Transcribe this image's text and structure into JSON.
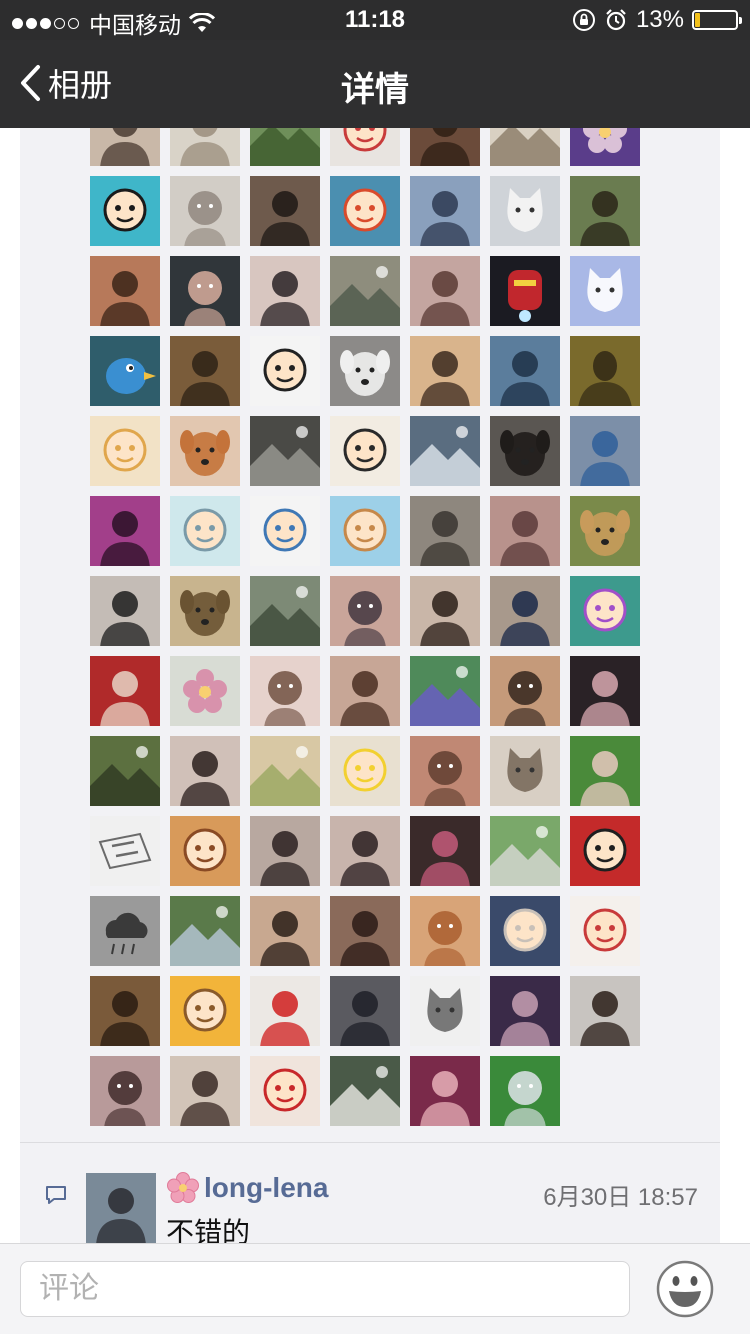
{
  "status_bar": {
    "carrier": "中国移动",
    "time": "11:18",
    "battery_text": "13%",
    "battery_level": 0.13,
    "signal_bars_total": 5,
    "signal_bars_full": 3
  },
  "nav": {
    "back_label": "相册",
    "title": "详情"
  },
  "likes": {
    "columns": 7,
    "avatars": [
      {
        "icon": "person-icon",
        "bg": "#c9b8a8",
        "fg": "#4a3b32"
      },
      {
        "icon": "person-icon",
        "bg": "#d9d3c8",
        "fg": "#9a8d7c"
      },
      {
        "icon": "landscape-icon",
        "bg": "#6f8f5a",
        "fg": "#3d5a2c"
      },
      {
        "icon": "cartoon-icon",
        "bg": "#e8e4e0",
        "fg": "#c83b3b"
      },
      {
        "icon": "person-icon",
        "bg": "#6b4b3a",
        "fg": "#2e1e14"
      },
      {
        "icon": "landscape-icon",
        "bg": "#d9d0c2",
        "fg": "#8a7a66"
      },
      {
        "icon": "flower-icon",
        "bg": "#5a3d8a",
        "fg": "#e8d0e0"
      },
      {
        "icon": "cartoon-icon",
        "bg": "#3fb6c9",
        "fg": "#1a1a1a"
      },
      {
        "icon": "baby-icon",
        "bg": "#d2cdc6",
        "fg": "#8d837a"
      },
      {
        "icon": "person-icon",
        "bg": "#6e5a4c",
        "fg": "#1f1915"
      },
      {
        "icon": "cartoon-icon",
        "bg": "#4b8fb0",
        "fg": "#d94a2b"
      },
      {
        "icon": "person-icon",
        "bg": "#8aa0bd",
        "fg": "#2d3a52"
      },
      {
        "icon": "cat-icon",
        "bg": "#cfd3d8",
        "fg": "#f5f5f5"
      },
      {
        "icon": "person-icon",
        "bg": "#6a7c50",
        "fg": "#2a2618"
      },
      {
        "icon": "person-icon",
        "bg": "#b7795a",
        "fg": "#3b2418"
      },
      {
        "icon": "baby-icon",
        "bg": "#30363a",
        "fg": "#e3b5a4"
      },
      {
        "icon": "person-icon",
        "bg": "#d8c6c0",
        "fg": "#2a2226"
      },
      {
        "icon": "landscape-icon",
        "bg": "#8e8d7d",
        "fg": "#4f5a4b"
      },
      {
        "icon": "person-icon",
        "bg": "#c4a5a0",
        "fg": "#5a3a34"
      },
      {
        "icon": "robot-icon",
        "bg": "#1b1b22",
        "fg": "#c1272d"
      },
      {
        "icon": "cat-icon",
        "bg": "#a9b8e6",
        "fg": "#ffffff"
      },
      {
        "icon": "bird-icon",
        "bg": "#2f5d6b",
        "fg": "#3a8fd1"
      },
      {
        "icon": "person-icon",
        "bg": "#7a5c3a",
        "fg": "#2e2216"
      },
      {
        "icon": "cartoon-icon",
        "bg": "#f4f4f4",
        "fg": "#222222"
      },
      {
        "icon": "dog-icon",
        "bg": "#8c8a88",
        "fg": "#efefef"
      },
      {
        "icon": "person-icon",
        "bg": "#d9b48c",
        "fg": "#3b2a1f"
      },
      {
        "icon": "person-icon",
        "bg": "#5b7d9c",
        "fg": "#1e3148"
      },
      {
        "icon": "portrait-icon",
        "bg": "#7a6a2c",
        "fg": "#3c3218"
      },
      {
        "icon": "cartoon-icon",
        "bg": "#f2e2c6",
        "fg": "#e0a64c"
      },
      {
        "icon": "dog-icon",
        "bg": "#e2c7b0",
        "fg": "#c4733a"
      },
      {
        "icon": "landscape-icon",
        "bg": "#4a4a46",
        "fg": "#9a9a94"
      },
      {
        "icon": "cartoon-icon",
        "bg": "#f2ece2",
        "fg": "#2a2a2a"
      },
      {
        "icon": "landscape-icon",
        "bg": "#5a6d80",
        "fg": "#dfe6ec"
      },
      {
        "icon": "dog-icon",
        "bg": "#5a5652",
        "fg": "#1f1c1a"
      },
      {
        "icon": "person-icon",
        "bg": "#7c8fa8",
        "fg": "#2f5f9a"
      },
      {
        "icon": "person-icon",
        "bg": "#a23f8a",
        "fg": "#2a1024"
      },
      {
        "icon": "cartoon-icon",
        "bg": "#cfe8ec",
        "fg": "#7a9aa8"
      },
      {
        "icon": "cartoon-icon",
        "bg": "#f4f4f4",
        "fg": "#3f78b5"
      },
      {
        "icon": "cartoon-icon",
        "bg": "#9dd0e8",
        "fg": "#c6884a"
      },
      {
        "icon": "person-icon",
        "bg": "#8e877e",
        "fg": "#3a3530"
      },
      {
        "icon": "person-icon",
        "bg": "#b8928c",
        "fg": "#5b3a3a"
      },
      {
        "icon": "dog-icon",
        "bg": "#7a8a4a",
        "fg": "#c89b5b"
      },
      {
        "icon": "person-icon",
        "bg": "#c4bcb6",
        "fg": "#1d1d1d"
      },
      {
        "icon": "dog-icon",
        "bg": "#c8b48e",
        "fg": "#6a5332"
      },
      {
        "icon": "landscape-icon",
        "bg": "#7d8a76",
        "fg": "#3d4a3a"
      },
      {
        "icon": "baby-icon",
        "bg": "#c9a59a",
        "fg": "#3b2f3a"
      },
      {
        "icon": "person-icon",
        "bg": "#c9b6a8",
        "fg": "#2a1e18"
      },
      {
        "icon": "person-icon",
        "bg": "#a8998c",
        "fg": "#1a2848"
      },
      {
        "icon": "cartoon-icon",
        "bg": "#3d9a8d",
        "fg": "#a14fc9"
      },
      {
        "icon": "person-icon",
        "bg": "#b02a2a",
        "fg": "#e8d4c4"
      },
      {
        "icon": "flower-icon",
        "bg": "#d8dcd4",
        "fg": "#d98aa8"
      },
      {
        "icon": "baby-icon",
        "bg": "#e6d2cc",
        "fg": "#6a4a3a"
      },
      {
        "icon": "person-icon",
        "bg": "#c7a696",
        "fg": "#4a2e22"
      },
      {
        "icon": "landscape-icon",
        "bg": "#4f8a5a",
        "fg": "#6a5ac8"
      },
      {
        "icon": "baby-icon",
        "bg": "#c59a7a",
        "fg": "#2a1e18"
      },
      {
        "icon": "person-icon",
        "bg": "#2a2226",
        "fg": "#d8a8b0"
      },
      {
        "icon": "landscape-icon",
        "bg": "#5c7040",
        "fg": "#2f3a22"
      },
      {
        "icon": "person-icon",
        "bg": "#d0c0b8",
        "fg": "#2a1e1c"
      },
      {
        "icon": "landscape-icon",
        "bg": "#d8c8a4",
        "fg": "#9aa860"
      },
      {
        "icon": "cartoon-icon",
        "bg": "#e8e0d0",
        "fg": "#f2d030"
      },
      {
        "icon": "baby-icon",
        "bg": "#c08874",
        "fg": "#5a3a2c"
      },
      {
        "icon": "cat-icon",
        "bg": "#d8cfc4",
        "fg": "#7a6a5c"
      },
      {
        "icon": "person-icon",
        "bg": "#4a8a3a",
        "fg": "#e8c8c0"
      },
      {
        "icon": "logo-icon",
        "bg": "#f0f0f0",
        "fg": "#6a6a6a"
      },
      {
        "icon": "cartoon-icon",
        "bg": "#d89a5a",
        "fg": "#8a4a24"
      },
      {
        "icon": "person-icon",
        "bg": "#b8a8a0",
        "fg": "#2a2020"
      },
      {
        "icon": "person-icon",
        "bg": "#c8b4ac",
        "fg": "#2a1e20"
      },
      {
        "icon": "person-icon",
        "bg": "#3a2a2a",
        "fg": "#c45a7a"
      },
      {
        "icon": "landscape-icon",
        "bg": "#7aa86a",
        "fg": "#d8d8d4"
      },
      {
        "icon": "cartoon-icon",
        "bg": "#c42a2a",
        "fg": "#1f1f1f"
      },
      {
        "icon": "cloud-icon",
        "bg": "#9a9a9a",
        "fg": "#3a3a3a"
      },
      {
        "icon": "landscape-icon",
        "bg": "#5a7a4a",
        "fg": "#b8c8d8"
      },
      {
        "icon": "person-icon",
        "bg": "#c8a890",
        "fg": "#2a1e18"
      },
      {
        "icon": "person-icon",
        "bg": "#8a6a5a",
        "fg": "#2a1a16"
      },
      {
        "icon": "baby-icon",
        "bg": "#d8a478",
        "fg": "#a85a2a"
      },
      {
        "icon": "cartoon-icon",
        "bg": "#3a4a6a",
        "fg": "#c8c0b8"
      },
      {
        "icon": "cartoon-icon",
        "bg": "#f4f0ec",
        "fg": "#c83a3a"
      },
      {
        "icon": "person-icon",
        "bg": "#7a5a3a",
        "fg": "#2a1c12"
      },
      {
        "icon": "cartoon-icon",
        "bg": "#f2b43a",
        "fg": "#8a5a2a"
      },
      {
        "icon": "person-icon",
        "bg": "#ece8e4",
        "fg": "#d01f1f"
      },
      {
        "icon": "person-icon",
        "bg": "#5a5a60",
        "fg": "#1f2028"
      },
      {
        "icon": "cat-icon",
        "bg": "#f0f0f0",
        "fg": "#6a6a6a"
      },
      {
        "icon": "person-icon",
        "bg": "#3a2a48",
        "fg": "#c8a0b4"
      },
      {
        "icon": "person-icon",
        "bg": "#c8c4c0",
        "fg": "#2a1e18"
      },
      {
        "icon": "baby-icon",
        "bg": "#b89a9a",
        "fg": "#3a2424"
      },
      {
        "icon": "person-icon",
        "bg": "#d2c4b8",
        "fg": "#3a2a24"
      },
      {
        "icon": "cartoon-icon",
        "bg": "#f0e4dc",
        "fg": "#c8282a"
      },
      {
        "icon": "landscape-icon",
        "bg": "#4a5a48",
        "fg": "#e8e8e4"
      },
      {
        "icon": "person-icon",
        "bg": "#7a2a4a",
        "fg": "#e8b0b8"
      },
      {
        "icon": "baby-icon",
        "bg": "#3a8a3a",
        "fg": "#e8e8f4"
      }
    ]
  },
  "comments": [
    {
      "name": "long-lena",
      "text": "不错的",
      "time": "6月30日 18:57",
      "avatar": {
        "icon": "person-icon",
        "bg": "#7a8a98",
        "fg": "#2a2a30"
      }
    }
  ],
  "input": {
    "placeholder": "评论"
  },
  "colors": {
    "status_bg": "#2d2d2e",
    "nav_bg": "#2f2f30",
    "panel_bg": "#f2f2f5",
    "name_link": "#576b95",
    "battery_fill": "#f3c11b"
  }
}
